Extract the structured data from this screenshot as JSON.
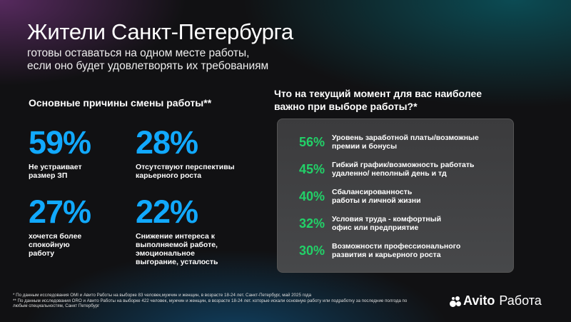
{
  "header": {
    "title": "Жители Санкт-Петербурга",
    "subtitle_lines": [
      "готовы оставаться на одном месте работы,",
      "если оно будет удовлетворять их требованиям"
    ]
  },
  "left": {
    "heading": "Основные причины смены работы**",
    "stats": [
      {
        "value": "59%",
        "label": "Не устраивает размер ЗП"
      },
      {
        "value": "28%",
        "label": "Отсутствуют перспективы карьерного роста"
      },
      {
        "value": "27%",
        "label": "хочется более спокойную работу"
      },
      {
        "value": "22%",
        "label": "Снижение интереса к выполняемой работе, эмоциональное выгорание, усталость"
      }
    ]
  },
  "right": {
    "heading": "Что на текущий момент для вас наиболее важно при выборе работы?*",
    "items": [
      {
        "value": "56%",
        "label": "Уровень заработной платы/возможные премии и бонусы"
      },
      {
        "value": "45%",
        "label": "Гибкий график/возможность работать удаленно/ неполный день и тд"
      },
      {
        "value": "40%",
        "label": "Сбалансированность работы и личной жизни"
      },
      {
        "value": "32%",
        "label": "Условия труда - комфортный офис или предприятие"
      },
      {
        "value": "30%",
        "label": "Возможности профессионального развития и карьерного роста"
      }
    ]
  },
  "footnotes": [
    "* По данным исследования OMI и Авито Работы на выборке 83 человек,мужчин и женщин, в возрасте 18-24 лет. Санкт-Петербург, май 2025 года",
    "** По данным исследования ORO и Авито Работы на выборке 422 человек, мужчин и женщин, в возрасте 18-24 лет. которые искали основную работу или подработку за последние полгода по любым специальностям, Санкт Петербург"
  ],
  "logo": {
    "brand": "Avito",
    "product": "Работа"
  },
  "colors": {
    "stat_blue": "#11a9ff",
    "accent_green": "#22d168"
  }
}
